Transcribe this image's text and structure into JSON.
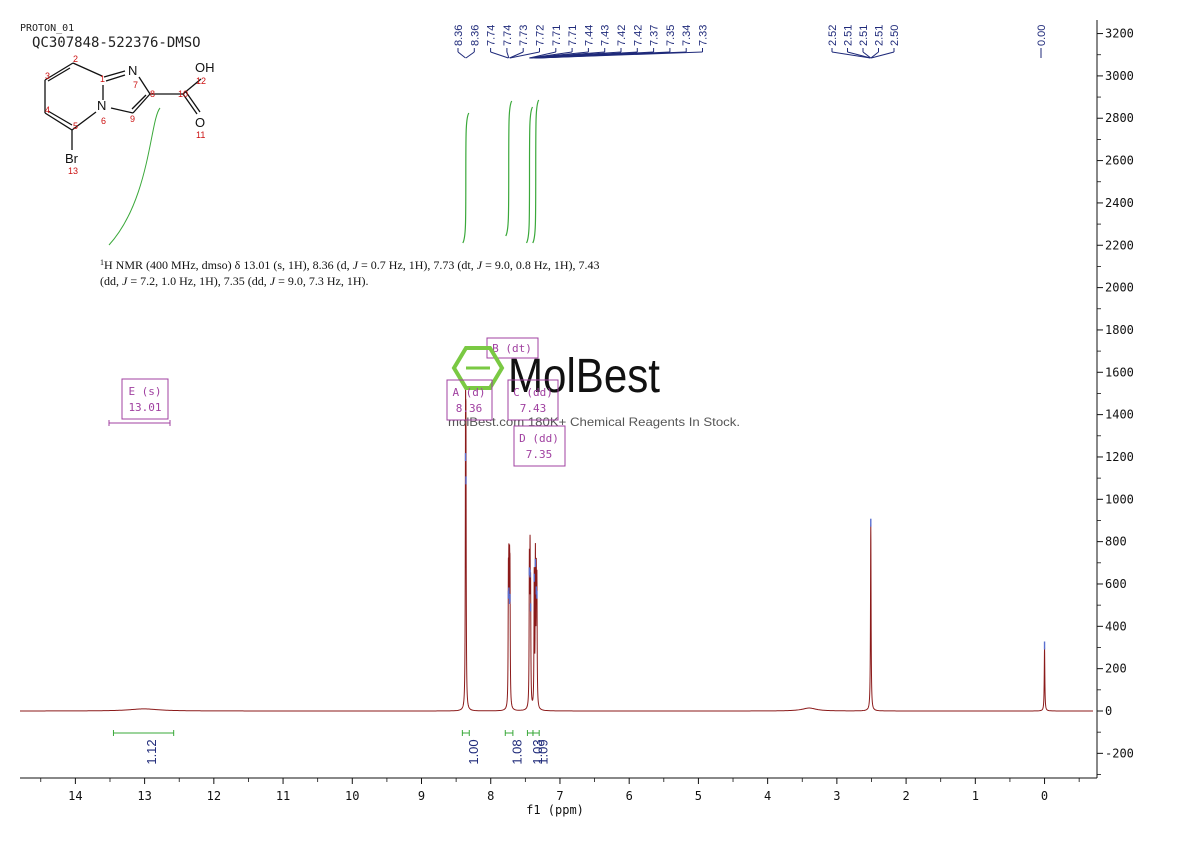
{
  "header": {
    "experiment": "PROTON_01",
    "sample_id": "QC307848-522376-DMSO"
  },
  "description": {
    "line1_prefix": "H NMR (400 MHz, dmso) δ 13.01 (s, 1H), 8.36 (d, ",
    "line1_j1": "J",
    "line1_mid": " = 0.7 Hz, 1H), 7.73 (dt, ",
    "line1_j2": "J",
    "line1_suffix": " = 9.0, 0.8 Hz, 1H), 7.43",
    "line2_prefix": "(dd, ",
    "line2_j1": "J",
    "line2_mid": " = 7.2, 1.0 Hz, 1H), 7.35 (dd, ",
    "line2_j2": "J",
    "line2_suffix": " = 9.0, 7.3 Hz, 1H).",
    "superscript": "1"
  },
  "watermark": {
    "brand": "MolBest",
    "tagline": "molBest.com 180K+ Chemical Reagents In Stock."
  },
  "molecule": {
    "atoms": {
      "N_imine": "N",
      "n7": "7",
      "OH": "OH",
      "n12": "12",
      "N_ring": "N",
      "n6": "6",
      "O": "O",
      "n11": "11",
      "Br": "Br",
      "n13": "13",
      "n1": "1",
      "n2": "2",
      "n3": "3",
      "n4": "4",
      "n5": "5",
      "n8": "8",
      "n9": "9",
      "n10": "10"
    }
  },
  "peak_labels": {
    "left_group": [
      "8.36",
      "8.36",
      "7.74",
      "7.74",
      "7.73",
      "7.72",
      "7.71",
      "7.71",
      "7.44",
      "7.43",
      "7.42",
      "7.42",
      "7.37",
      "7.35",
      "7.34",
      "7.33"
    ],
    "right_group": [
      "2.52",
      "2.51",
      "2.51",
      "2.51",
      "2.50"
    ],
    "zero": "0.00"
  },
  "multiplets": [
    {
      "letter": "E (s)",
      "shift": "13.01"
    },
    {
      "letter": "A (d)",
      "shift": "8.36"
    },
    {
      "letter": "B (dt)",
      "shift": ""
    },
    {
      "letter": "C (dd)",
      "shift": "7.43"
    },
    {
      "letter": "D (dd)",
      "shift": "7.35"
    }
  ],
  "colors": {
    "spectrum": "#8b1a1a",
    "integral": "#3aa83a",
    "peak_label": "#1f2a7a",
    "multiplet_box": "#a040a0",
    "atom_red": "#cc1111",
    "watermark_green": "#7ac943"
  },
  "chart_data": {
    "type": "line",
    "title": "",
    "xlabel": "f1 (ppm)",
    "ylabel": "",
    "x_reversed": true,
    "xlim": [
      14.8,
      -0.7
    ],
    "ylim": [
      -300,
      3250
    ],
    "x_ticks": [
      14,
      13,
      12,
      11,
      10,
      9,
      8,
      7,
      6,
      5,
      4,
      3,
      2,
      1,
      0
    ],
    "y_ticks": [
      -200,
      0,
      200,
      400,
      600,
      800,
      1000,
      1200,
      1400,
      1600,
      1800,
      2000,
      2200,
      2400,
      2600,
      2800,
      3000,
      3200
    ],
    "peaks": [
      {
        "ppm": 13.01,
        "height": 10,
        "width": 0.25
      },
      {
        "ppm": 8.364,
        "height": 1190,
        "width": 0.004
      },
      {
        "ppm": 8.358,
        "height": 1080,
        "width": 0.004
      },
      {
        "ppm": 7.745,
        "height": 540,
        "width": 0.004
      },
      {
        "ppm": 7.738,
        "height": 555,
        "width": 0.004
      },
      {
        "ppm": 7.728,
        "height": 515,
        "width": 0.004
      },
      {
        "ppm": 7.722,
        "height": 525,
        "width": 0.004
      },
      {
        "ppm": 7.442,
        "height": 650,
        "width": 0.004
      },
      {
        "ppm": 7.432,
        "height": 640,
        "width": 0.004
      },
      {
        "ppm": 7.424,
        "height": 480,
        "width": 0.004
      },
      {
        "ppm": 7.372,
        "height": 620,
        "width": 0.004
      },
      {
        "ppm": 7.355,
        "height": 690,
        "width": 0.004
      },
      {
        "ppm": 7.342,
        "height": 560,
        "width": 0.004
      },
      {
        "ppm": 7.333,
        "height": 540,
        "width": 0.004
      },
      {
        "ppm": 3.4,
        "height": 14,
        "width": 0.12
      },
      {
        "ppm": 2.51,
        "height": 880,
        "width": 0.005
      },
      {
        "ppm": 0.0,
        "height": 300,
        "width": 0.005
      }
    ],
    "integrals": [
      {
        "from": 13.45,
        "to": 12.58,
        "label_ppm": 13.01,
        "value": "1.12"
      },
      {
        "from": 8.41,
        "to": 8.31,
        "label_ppm": 8.36,
        "value": "1.00"
      },
      {
        "from": 7.79,
        "to": 7.68,
        "label_ppm": 7.73,
        "value": "1.08"
      },
      {
        "from": 7.47,
        "to": 7.39,
        "label_ppm": 7.43,
        "value": "1.03"
      },
      {
        "from": 7.39,
        "to": 7.3,
        "label_ppm": 7.35,
        "value": "1.09"
      }
    ]
  }
}
